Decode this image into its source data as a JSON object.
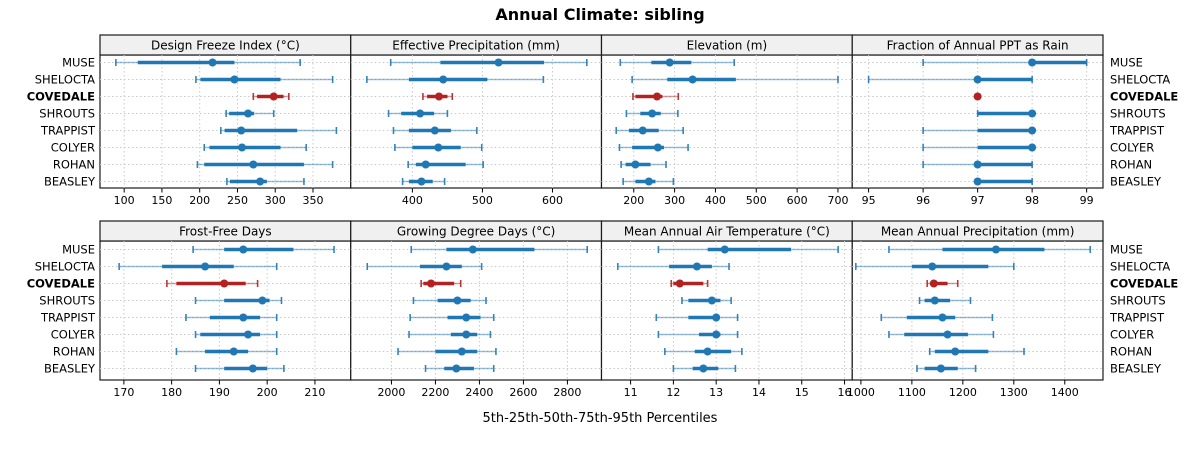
{
  "chart_data": {
    "type": "trellis-percentile-dotplot",
    "title": "Annual Climate: sibling",
    "xlabel": "5th-25th-50th-75th-95th Percentiles",
    "categories": [
      "MUSE",
      "SHELOCTA",
      "COVEDALE",
      "SHROUTS",
      "TRAPPIST",
      "COLYER",
      "ROHAN",
      "BEASLEY"
    ],
    "highlight_category": "COVEDALE",
    "percentile_order": [
      "p5",
      "p25",
      "p50",
      "p75",
      "p95"
    ],
    "layout_hint": {
      "grid": "2 rows x 4 cols",
      "x_scales": "free per panel",
      "row_labels": "both sides"
    },
    "colors": {
      "series": "#1f77b4",
      "highlight": "#b22222",
      "grid_line": "#c9c9c9",
      "panel_header_bg": "#f0f0f0",
      "panel_border": "#1a1a1a"
    },
    "panels": [
      {
        "title": "Design Freeze Index (°C)",
        "grid_row": 0,
        "grid_col": 0,
        "xlim": [
          68,
          400
        ],
        "ticks": [
          100,
          150,
          200,
          250,
          300,
          350
        ],
        "values": [
          [
            89,
            118,
            217,
            246,
            333
          ],
          [
            195,
            201,
            246,
            307,
            376
          ],
          [
            271,
            276,
            298,
            311,
            318
          ],
          [
            235,
            239,
            264,
            272,
            298
          ],
          [
            228,
            233,
            255,
            329,
            381
          ],
          [
            206,
            213,
            256,
            307,
            341
          ],
          [
            197,
            206,
            271,
            338,
            376
          ],
          [
            236,
            240,
            280,
            289,
            338
          ]
        ]
      },
      {
        "title": "Effective Precipitation (mm)",
        "grid_row": 0,
        "grid_col": 1,
        "xlim": [
          312,
          670
        ],
        "ticks": [
          400,
          500,
          600
        ],
        "values": [
          [
            369,
            440,
            523,
            588,
            649
          ],
          [
            335,
            395,
            444,
            507,
            587
          ],
          [
            415,
            421,
            438,
            450,
            457
          ],
          [
            366,
            384,
            411,
            431,
            450
          ],
          [
            373,
            395,
            432,
            455,
            492
          ],
          [
            375,
            400,
            437,
            469,
            499
          ],
          [
            394,
            405,
            419,
            476,
            501
          ],
          [
            386,
            395,
            413,
            429,
            446
          ]
        ]
      },
      {
        "title": "Elevation (m)",
        "grid_row": 0,
        "grid_col": 2,
        "xlim": [
          121,
          735
        ],
        "ticks": [
          200,
          300,
          400,
          500,
          600,
          700
        ],
        "values": [
          [
            167,
            243,
            288,
            341,
            446
          ],
          [
            196,
            282,
            344,
            450,
            700
          ],
          [
            198,
            204,
            257,
            270,
            309
          ],
          [
            182,
            216,
            245,
            266,
            308
          ],
          [
            157,
            188,
            222,
            261,
            321
          ],
          [
            165,
            196,
            259,
            274,
            333
          ],
          [
            169,
            180,
            204,
            241,
            279
          ],
          [
            174,
            204,
            237,
            253,
            297
          ]
        ]
      },
      {
        "title": "Fraction of Annual PPT as Rain",
        "grid_row": 0,
        "grid_col": 3,
        "xlim": [
          94.7,
          99.3
        ],
        "ticks": [
          95,
          96,
          97,
          98,
          99
        ],
        "values": [
          [
            96,
            98,
            98,
            99,
            99
          ],
          [
            95,
            97,
            97,
            98,
            98
          ],
          [
            97,
            97,
            97,
            97,
            97
          ],
          [
            97,
            97,
            98,
            98,
            98
          ],
          [
            96,
            97,
            98,
            98,
            98
          ],
          [
            96,
            97,
            98,
            98,
            98
          ],
          [
            96,
            97,
            97,
            98,
            98
          ],
          [
            97,
            97,
            97,
            98,
            98
          ]
        ]
      },
      {
        "title": "Frost-Free Days",
        "grid_row": 1,
        "grid_col": 0,
        "xlim": [
          165,
          217.5
        ],
        "ticks": [
          170,
          180,
          190,
          200,
          210
        ],
        "values": [
          [
            184.5,
            191,
            195,
            205.5,
            214
          ],
          [
            169,
            178,
            187,
            193,
            202
          ],
          [
            179,
            181,
            191,
            195.5,
            198
          ],
          [
            185,
            191,
            199,
            200.5,
            203
          ],
          [
            183,
            188,
            195,
            198.5,
            202
          ],
          [
            185,
            186,
            196,
            198.5,
            202
          ],
          [
            181,
            187,
            193,
            196,
            202
          ],
          [
            185,
            191,
            197,
            200,
            203.5
          ]
        ]
      },
      {
        "title": "Growing Degree Days (°C)",
        "grid_row": 1,
        "grid_col": 1,
        "xlim": [
          1815,
          2955
        ],
        "ticks": [
          2000,
          2200,
          2400,
          2600,
          2800
        ],
        "values": [
          [
            2090,
            2250,
            2370,
            2650,
            2890
          ],
          [
            1890,
            2130,
            2250,
            2320,
            2410
          ],
          [
            2135,
            2145,
            2180,
            2285,
            2315
          ],
          [
            2100,
            2210,
            2300,
            2360,
            2430
          ],
          [
            2085,
            2255,
            2340,
            2405,
            2465
          ],
          [
            2080,
            2270,
            2340,
            2390,
            2450
          ],
          [
            2030,
            2200,
            2320,
            2390,
            2475
          ],
          [
            2155,
            2240,
            2295,
            2375,
            2465
          ]
        ]
      },
      {
        "title": "Mean Annual Air Temperature (°C)",
        "grid_row": 1,
        "grid_col": 2,
        "xlim": [
          10.32,
          16.18
        ],
        "ticks": [
          11,
          12,
          13,
          14,
          15,
          16
        ],
        "values": [
          [
            11.65,
            12.8,
            13.2,
            14.75,
            15.85
          ],
          [
            10.7,
            11.9,
            12.55,
            12.9,
            13.3
          ],
          [
            11.95,
            12.0,
            12.15,
            12.7,
            12.8
          ],
          [
            12.2,
            12.35,
            12.9,
            13.1,
            13.35
          ],
          [
            11.6,
            12.35,
            13.0,
            13.05,
            13.5
          ],
          [
            11.65,
            12.6,
            13.0,
            13.1,
            13.5
          ],
          [
            11.8,
            12.5,
            12.8,
            13.35,
            13.6
          ],
          [
            12.0,
            12.45,
            12.7,
            13.05,
            13.45
          ]
        ]
      },
      {
        "title": "Mean Annual Precipitation (mm)",
        "grid_row": 1,
        "grid_col": 3,
        "xlim": [
          983,
          1475
        ],
        "ticks": [
          1000,
          1100,
          1200,
          1300,
          1400
        ],
        "values": [
          [
            1055,
            1160,
            1265,
            1360,
            1450
          ],
          [
            990,
            1100,
            1140,
            1250,
            1300
          ],
          [
            1130,
            1137,
            1143,
            1170,
            1190
          ],
          [
            1115,
            1125,
            1145,
            1175,
            1215
          ],
          [
            1040,
            1090,
            1160,
            1185,
            1258
          ],
          [
            1055,
            1085,
            1170,
            1210,
            1260
          ],
          [
            1135,
            1145,
            1185,
            1250,
            1320
          ],
          [
            1110,
            1125,
            1157,
            1190,
            1225
          ]
        ]
      }
    ]
  }
}
